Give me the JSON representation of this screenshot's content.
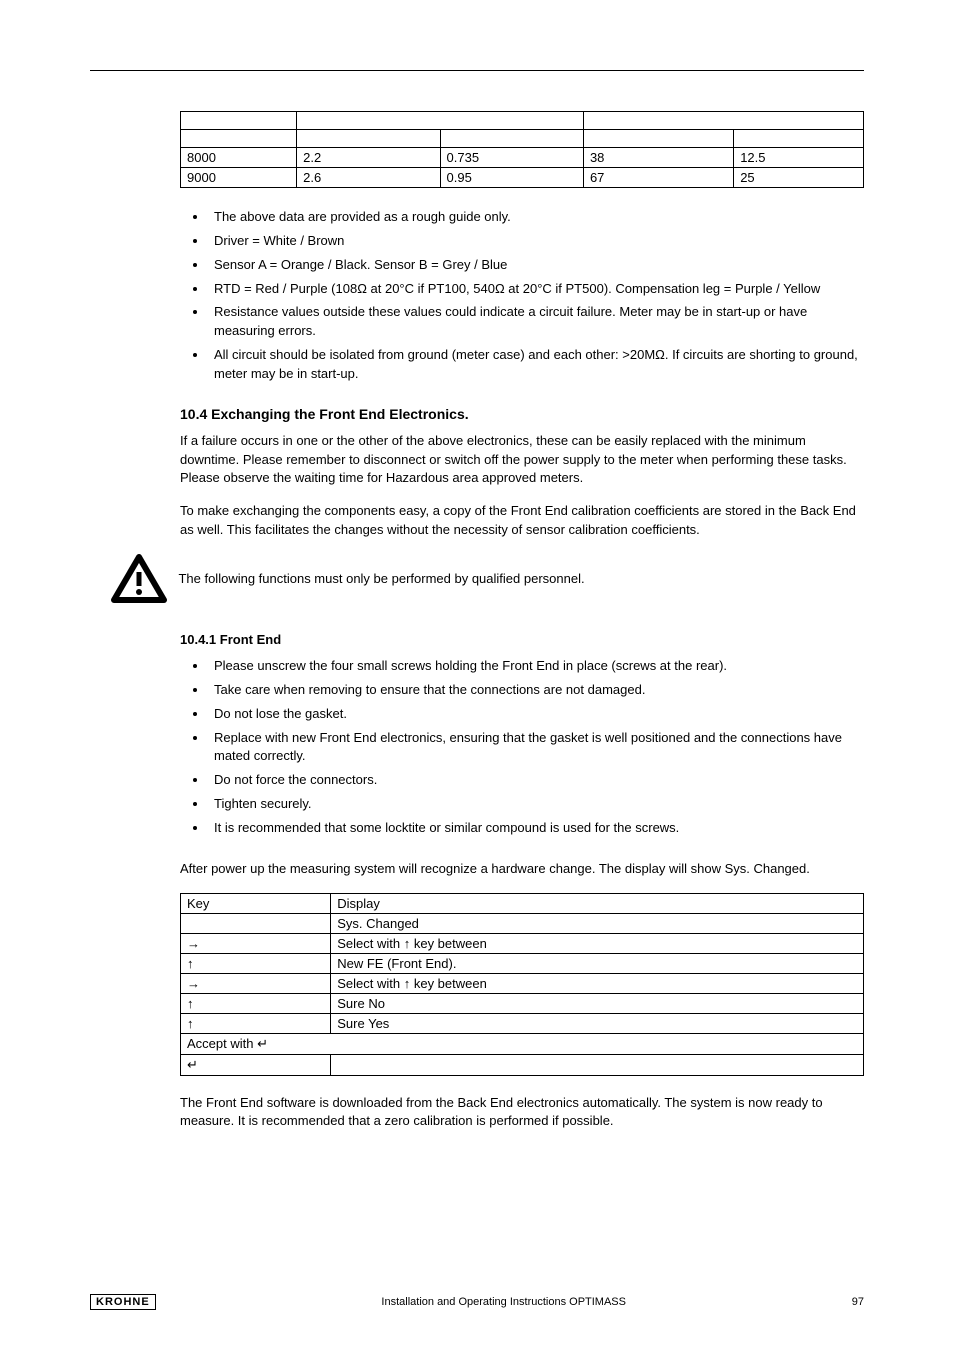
{
  "table1": {
    "cols": 5,
    "rows": [
      [
        "8000",
        "2.2",
        "0.735",
        "38",
        "12.5"
      ],
      [
        "9000",
        "2.6",
        "0.95",
        "67",
        "25"
      ]
    ],
    "col_widths": [
      "17%",
      "21%",
      "21%",
      "22%",
      "19%"
    ]
  },
  "bullets1": [
    "The above data are provided as a rough guide only.",
    "Driver = White / Brown",
    "Sensor A = Orange / Black. Sensor B = Grey / Blue",
    "RTD = Red / Purple (108Ω at 20°C if PT100, 540Ω at 20°C if PT500). Compensation leg = Purple / Yellow",
    "Resistance values outside these values could indicate a circuit failure. Meter may be in start-up or have measuring errors.",
    "All circuit should be isolated from ground (meter case) and each other: >20MΩ. If circuits are shorting to ground, meter may be in start-up."
  ],
  "section": {
    "title": "10.4 Exchanging the Front End Electronics.",
    "para1": "If a failure occurs in one or the other of the above electronics, these can be easily replaced with the minimum downtime.  Please remember to disconnect or switch off the power supply to the meter when performing these tasks.  Please observe the waiting time for Hazardous area approved meters.",
    "para2": "To make exchanging the components easy, a copy of the Front End calibration coefficients are stored in the Back End as well. This facilitates the changes without the necessity of sensor calibration coefficients.",
    "warn": "The following functions must only be performed by qualified personnel."
  },
  "subsection_title": "10.4.1 Front End",
  "bullets2": [
    "Please unscrew the four small screws holding the Front End in place (screws at the rear).",
    "Take care when removing to ensure that the connections are not damaged.",
    "Do not lose the gasket.",
    "Replace with new Front End electronics, ensuring that the gasket is well positioned and the connections have mated correctly.",
    "Do not force the connectors.",
    "Tighten securely.",
    "It is recommended that some locktite or similar compound is used for the screws."
  ],
  "para_after_bullets2": "After power up the measuring system will recognize a hardware change. The display will show Sys. Changed.",
  "key_table": {
    "head": [
      "Key",
      "Display"
    ],
    "rows": [
      [
        "",
        "Sys. Changed"
      ],
      [
        "→",
        "Select with ↑ key between"
      ],
      [
        "↑",
        "New FE (Front End)."
      ],
      [
        "→",
        "Select with ↑ key between"
      ],
      [
        "↑",
        "Sure No"
      ],
      [
        "↑",
        "Sure Yes"
      ],
      [
        "Accept with ↵",
        ""
      ],
      [
        "↵",
        ""
      ]
    ]
  },
  "para_after_keys": "The Front End software is downloaded from the Back End electronics automatically. The system is now ready to measure. It is recommended that a zero calibration is performed if possible.",
  "footer": {
    "logo": "KROHNE",
    "center": "Installation and Operating Instructions OPTIMASS",
    "page": "97"
  }
}
